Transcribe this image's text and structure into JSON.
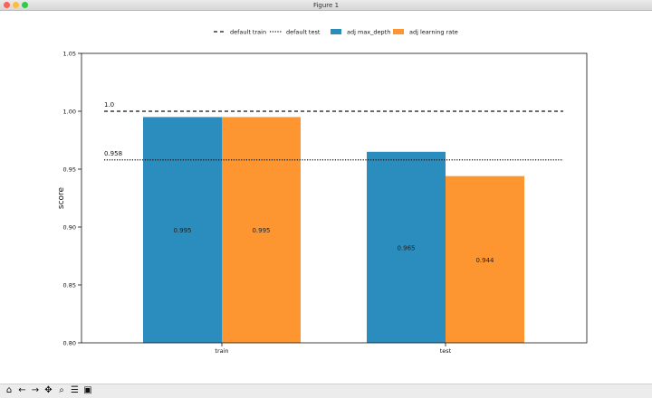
{
  "window": {
    "title": "Figure 1"
  },
  "toolbar": {
    "buttons": [
      {
        "name": "home-icon",
        "glyph": "⌂"
      },
      {
        "name": "back-icon",
        "glyph": "←"
      },
      {
        "name": "forward-icon",
        "glyph": "→"
      },
      {
        "name": "pan-icon",
        "glyph": "✥"
      },
      {
        "name": "zoom-icon",
        "glyph": "⌕"
      },
      {
        "name": "configure-subplots-icon",
        "glyph": "☰"
      },
      {
        "name": "save-icon",
        "glyph": "▣"
      }
    ]
  },
  "chart_data": {
    "type": "bar",
    "categories": [
      "train",
      "test"
    ],
    "series": [
      {
        "name": "adj max_depth",
        "values": [
          0.995,
          0.965
        ],
        "labels": [
          "0.995",
          "0.965"
        ],
        "color": "#2b8cbe"
      },
      {
        "name": "adj learning rate",
        "values": [
          0.995,
          0.944
        ],
        "labels": [
          "0.995",
          "0.944"
        ],
        "color": "#fd9530"
      }
    ],
    "reference_lines": [
      {
        "name": "default train",
        "value": 1.0,
        "label": "1.0",
        "style": "dashed"
      },
      {
        "name": "default test",
        "value": 0.958,
        "label": "0.958",
        "style": "dotted"
      }
    ],
    "ylabel": "score",
    "xlabel": "",
    "ylim": [
      0.8,
      1.05
    ],
    "yticks": [
      "0.80",
      "0.85",
      "0.90",
      "0.95",
      "1.00",
      "1.05"
    ],
    "legend": "top-center",
    "grid": false
  }
}
